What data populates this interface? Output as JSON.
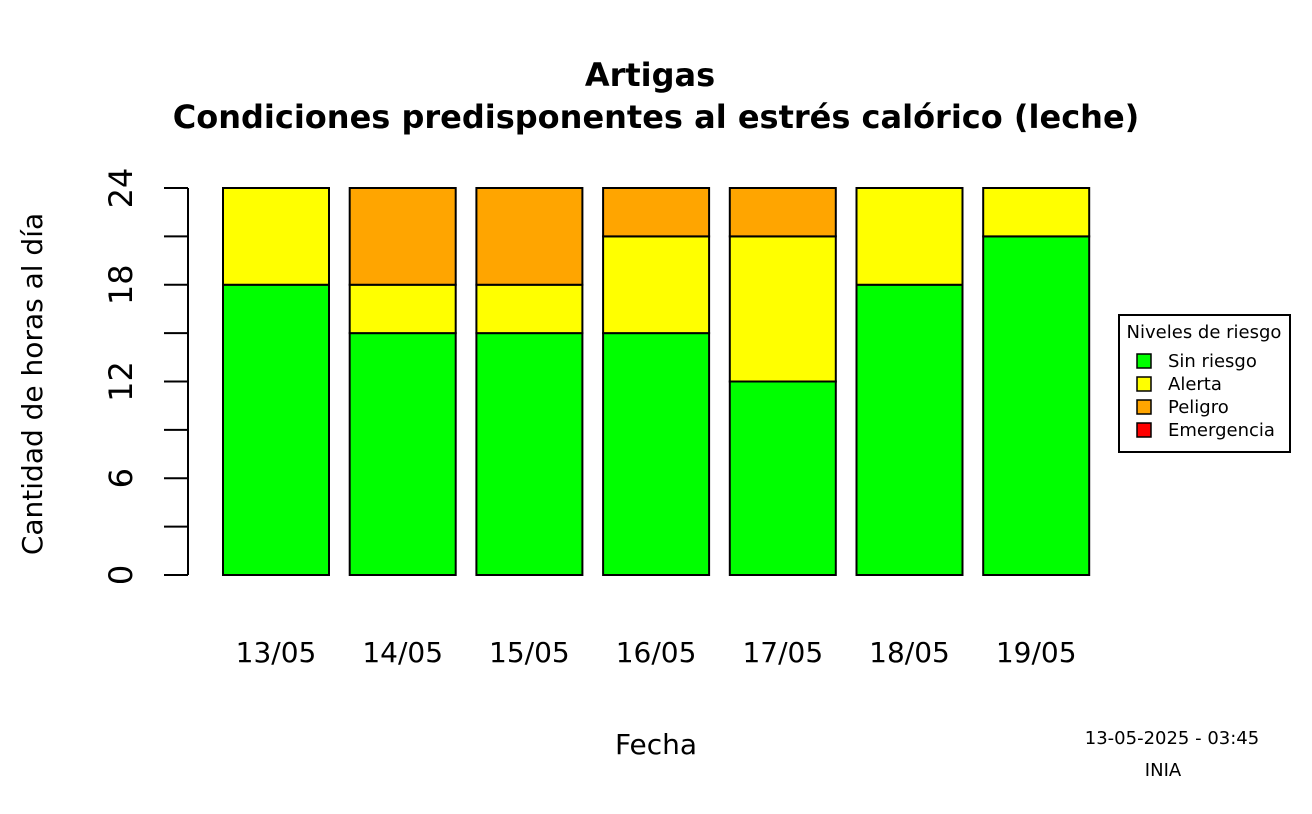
{
  "chart_data": {
    "type": "bar",
    "stacked": true,
    "title": "Artigas",
    "subtitle": "Condiciones predisponentes al estrés calórico (leche)",
    "xlabel": "Fecha",
    "ylabel": "Cantidad de horas al día",
    "ylim": [
      0,
      24
    ],
    "yticks": [
      0,
      6,
      12,
      18,
      24
    ],
    "ytick_labels": [
      "0",
      "6",
      "12",
      "18",
      "24"
    ],
    "grid": false,
    "categories": [
      "13/05",
      "14/05",
      "15/05",
      "16/05",
      "17/05",
      "18/05",
      "19/05"
    ],
    "series": [
      {
        "name": "Sin riesgo",
        "color": "#00ff00",
        "values": [
          18,
          15,
          15,
          15,
          12,
          18,
          21
        ]
      },
      {
        "name": "Alerta",
        "color": "#ffff00",
        "values": [
          6,
          3,
          3,
          6,
          9,
          6,
          3
        ]
      },
      {
        "name": "Peligro",
        "color": "#ffa500",
        "values": [
          0,
          6,
          6,
          3,
          3,
          0,
          0
        ]
      },
      {
        "name": "Emergencia",
        "color": "#ff0000",
        "values": [
          0,
          0,
          0,
          0,
          0,
          0,
          0
        ]
      }
    ],
    "legend": {
      "title": "Niveles de riesgo",
      "position": "right"
    }
  },
  "footer": {
    "timestamp": "13-05-2025 - 03:45",
    "source": "INIA"
  }
}
